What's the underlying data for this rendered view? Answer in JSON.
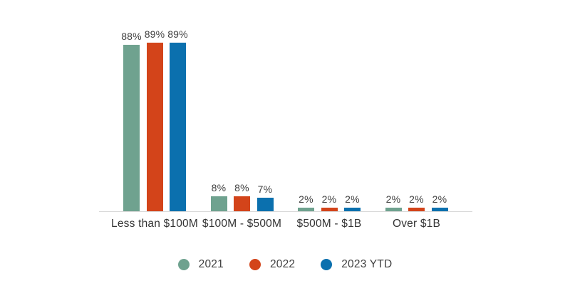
{
  "chart_data": {
    "type": "bar",
    "categories": [
      "Less than $100M",
      "$100M - $500M",
      "$500M - $1B",
      "Over $1B"
    ],
    "series": [
      {
        "name": "2021",
        "color": "#6FA28F",
        "values": [
          88,
          8,
          2,
          2
        ]
      },
      {
        "name": "2022",
        "color": "#D3441A",
        "values": [
          89,
          8,
          2,
          2
        ]
      },
      {
        "name": "2023 YTD",
        "color": "#0B70AE",
        "values": [
          89,
          7,
          2,
          2
        ]
      }
    ],
    "value_suffix": "%",
    "ylim": [
      0,
      93
    ],
    "grid": false,
    "legend_position": "bottom",
    "axis_line_color": "#D9D9D9",
    "value_label_color": "#414141",
    "category_label_color": "#333333"
  }
}
